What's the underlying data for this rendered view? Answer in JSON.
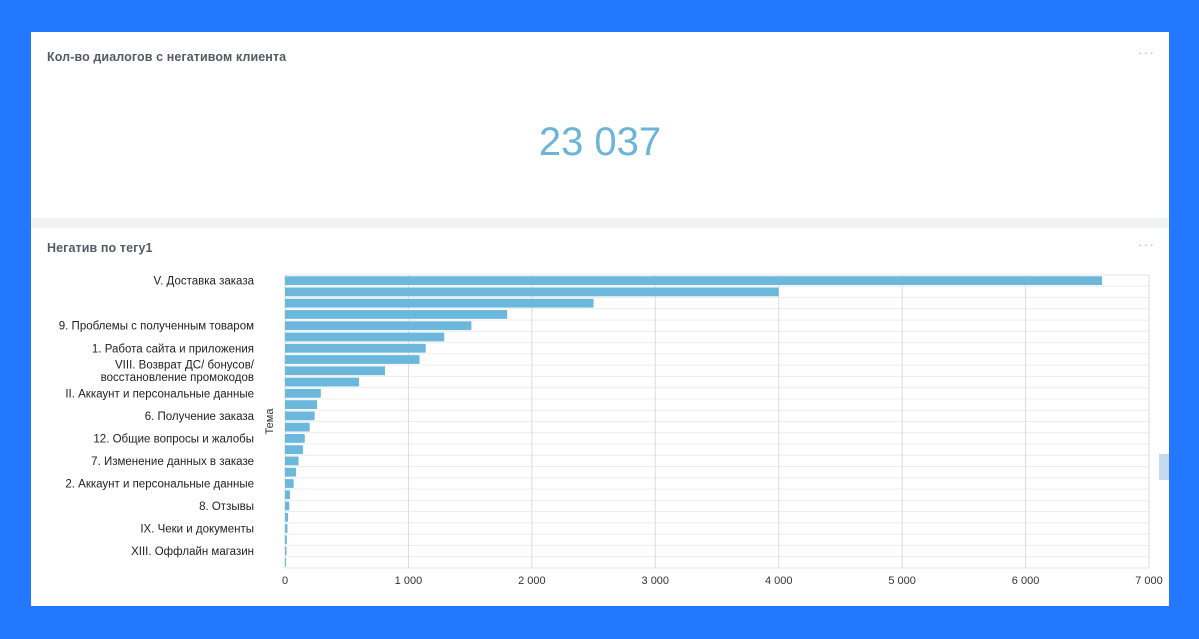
{
  "kpi": {
    "title": "Кол-во диалогов с негативом клиента",
    "value": "23 037",
    "menu": "···"
  },
  "chart_panel": {
    "title": "Негатив по тегу1",
    "menu": "···"
  },
  "colors": {
    "bar": "#6cb8dc",
    "kpi_value": "#6cb4d8",
    "background": "#2477ff"
  },
  "chart_data": {
    "type": "bar",
    "orientation": "horizontal",
    "title": "Негатив по тегу1",
    "ylabel": "Тема",
    "xlabel": "",
    "xlim": [
      0,
      7000
    ],
    "x_ticks": [
      "0",
      "1 000",
      "2 000",
      "3 000",
      "4 000",
      "5 000",
      "6 000",
      "7 000"
    ],
    "grid": true,
    "categories": [
      "V. Доставка заказа",
      "",
      "",
      "",
      "9. Проблемы с полученным товаром",
      "",
      "1. Работа сайта и приложения",
      "",
      "VIII. Возврат ДС/ бонусов/\nвосстановление промокодов",
      "",
      "II. Аккаунт и персональные данные",
      "",
      "6. Получение заказа",
      "",
      "12. Общие вопросы и жалобы",
      "",
      "7. Изменение данных в заказе",
      "",
      "2. Аккаунт и персональные данные",
      "",
      "8. Отзывы",
      "",
      "IX. Чеки и документы",
      "",
      "XIII. Оффлайн магазин",
      ""
    ],
    "values": [
      6620,
      4000,
      2500,
      1800,
      1510,
      1290,
      1140,
      1090,
      810,
      600,
      290,
      260,
      240,
      200,
      160,
      145,
      110,
      90,
      70,
      40,
      35,
      25,
      20,
      15,
      12,
      8
    ]
  }
}
